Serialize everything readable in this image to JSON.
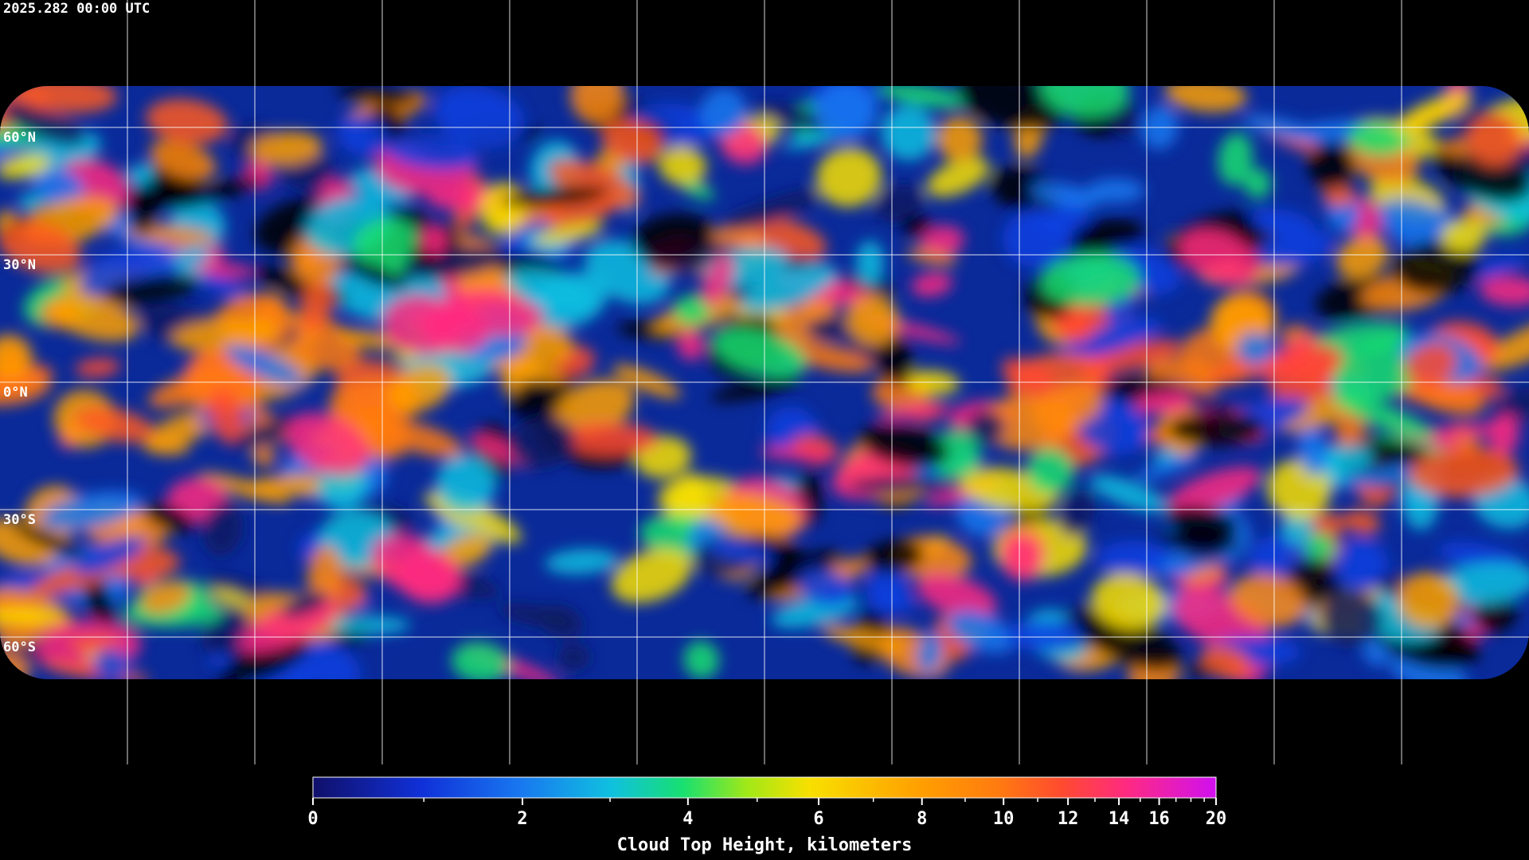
{
  "header": {
    "timestamp": "2025.282 00:00 UTC"
  },
  "map": {
    "latitude_lines": [
      {
        "value": 60,
        "label": "60°N"
      },
      {
        "value": 30,
        "label": "30°N"
      },
      {
        "value": 0,
        "label": "0°N"
      },
      {
        "value": -30,
        "label": "30°S"
      },
      {
        "value": -60,
        "label": "60°S"
      }
    ],
    "longitude_lines": [
      -150,
      -120,
      -90,
      -60,
      -30,
      0,
      30,
      60,
      90,
      120,
      150
    ]
  },
  "colorbar": {
    "label": "Cloud Top Height, kilometers",
    "range": [
      0,
      20
    ],
    "ticks": [
      0,
      2,
      4,
      6,
      8,
      10,
      12,
      14,
      16,
      20
    ],
    "minor_ticks": [
      1,
      3,
      5,
      7,
      9,
      11,
      13,
      15,
      17,
      18,
      19
    ]
  }
}
